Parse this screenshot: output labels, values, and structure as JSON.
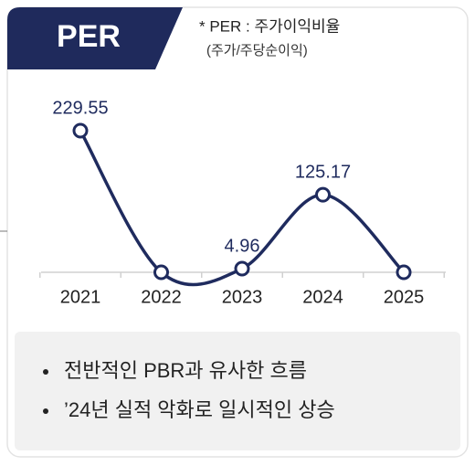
{
  "header": {
    "title": "PER",
    "note": [
      "* PER : 주가이익비율",
      "(주가/주당순이익)"
    ]
  },
  "chart_data": {
    "type": "line",
    "categories": [
      "2021",
      "2022",
      "2023",
      "2024",
      "2025"
    ],
    "values": [
      229.55,
      -1,
      4.96,
      125.17,
      -1
    ],
    "value_labels": [
      "229.55",
      null,
      "4.96",
      "125.17",
      null
    ],
    "color": "#1f2b5e"
  },
  "notes": [
    "전반적인 PBR과 유사한 흐름",
    "’24년 실적 악화로 일시적인 상승"
  ]
}
